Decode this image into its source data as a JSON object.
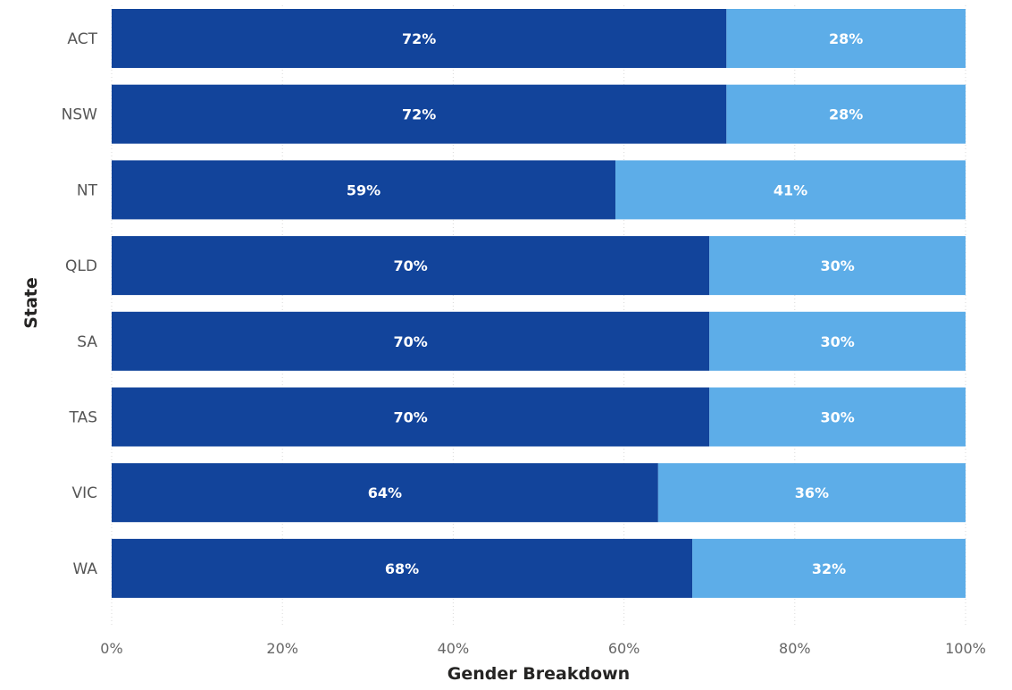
{
  "chart_data": {
    "type": "bar",
    "orientation": "horizontal",
    "stacked": "100%",
    "categories": [
      "ACT",
      "NSW",
      "NT",
      "QLD",
      "SA",
      "TAS",
      "VIC",
      "WA"
    ],
    "series": [
      {
        "values": [
          72,
          72,
          59,
          70,
          70,
          70,
          64,
          68
        ],
        "labels": [
          "72%",
          "72%",
          "59%",
          "70%",
          "70%",
          "70%",
          "64%",
          "68%"
        ],
        "color": "#12449B"
      },
      {
        "values": [
          28,
          28,
          41,
          30,
          30,
          30,
          36,
          32
        ],
        "labels": [
          "28%",
          "28%",
          "41%",
          "30%",
          "30%",
          "30%",
          "36%",
          "32%"
        ],
        "color": "#5DADE8"
      }
    ],
    "xlabel": "Gender Breakdown",
    "ylabel": "State",
    "xlim": [
      0,
      100
    ],
    "x_ticks": [
      0,
      20,
      40,
      60,
      80,
      100
    ],
    "x_tick_labels": [
      "0%",
      "20%",
      "40%",
      "60%",
      "80%",
      "100%"
    ],
    "grid": true,
    "legend": "none"
  }
}
